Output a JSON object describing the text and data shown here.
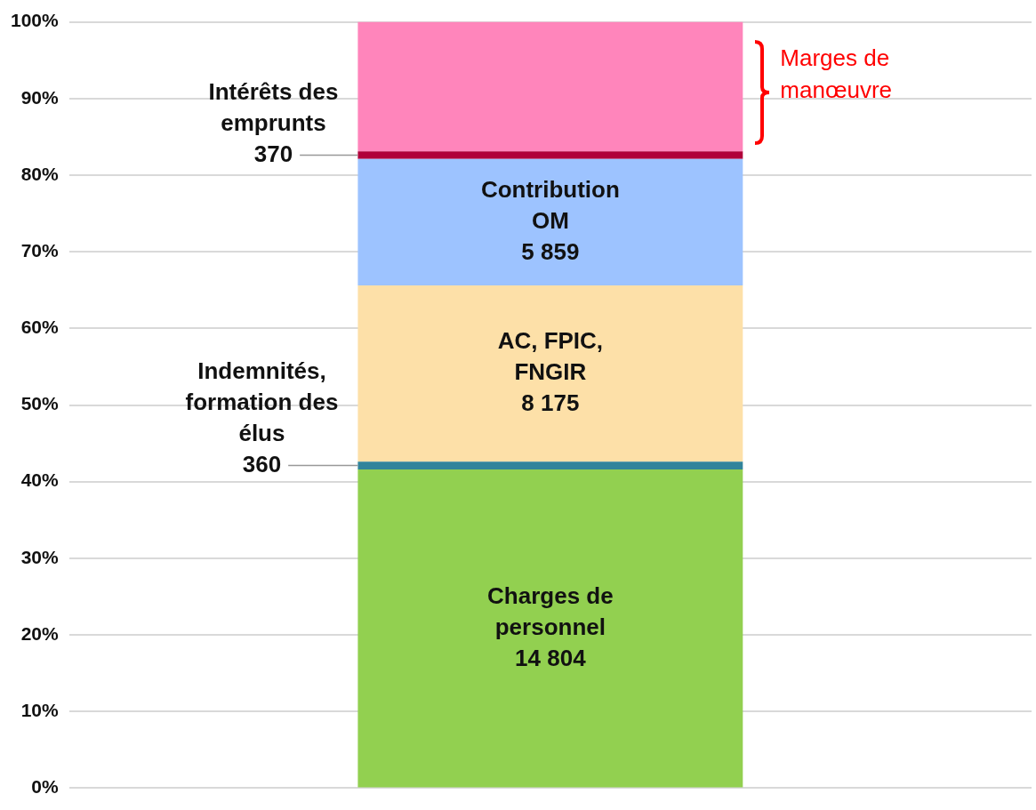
{
  "chart_data": {
    "type": "bar",
    "stacked": true,
    "categories": [
      null
    ],
    "series": [
      {
        "name": "Charges de personnel",
        "color": "#92d050",
        "values": [
          41.6
        ]
      },
      {
        "name": "Indemnités, formation des élus",
        "color": "#31849b",
        "values": [
          1.0
        ]
      },
      {
        "name": "AC, FPIC, FNGIR",
        "color": "#fde0a8",
        "values": [
          23.0
        ]
      },
      {
        "name": "Contribution OM",
        "color": "#9dc3ff",
        "values": [
          16.5
        ]
      },
      {
        "name": "Intérêts des emprunts",
        "color": "#b0003a",
        "values": [
          1.0
        ]
      },
      {
        "name": "Marges de manœuvre",
        "color": "#ff85bb",
        "values": [
          16.9
        ]
      }
    ],
    "annotations": [
      "14 804",
      "360",
      "8 175",
      "5 859",
      "370"
    ],
    "ylim": [
      0,
      100
    ],
    "yticks": [
      {
        "value": 0,
        "label": "0%"
      },
      {
        "value": 10,
        "label": "10%"
      },
      {
        "value": 20,
        "label": "20%"
      },
      {
        "value": 30,
        "label": "30%"
      },
      {
        "value": 40,
        "label": "40%"
      },
      {
        "value": 50,
        "label": "50%"
      },
      {
        "value": 60,
        "label": "60%"
      },
      {
        "value": 70,
        "label": "70%"
      },
      {
        "value": 80,
        "label": "80%"
      },
      {
        "value": 90,
        "label": "90%"
      },
      {
        "value": 100,
        "label": "100%"
      }
    ],
    "grid": "y",
    "legend": false,
    "tick_labels": "y"
  }
}
